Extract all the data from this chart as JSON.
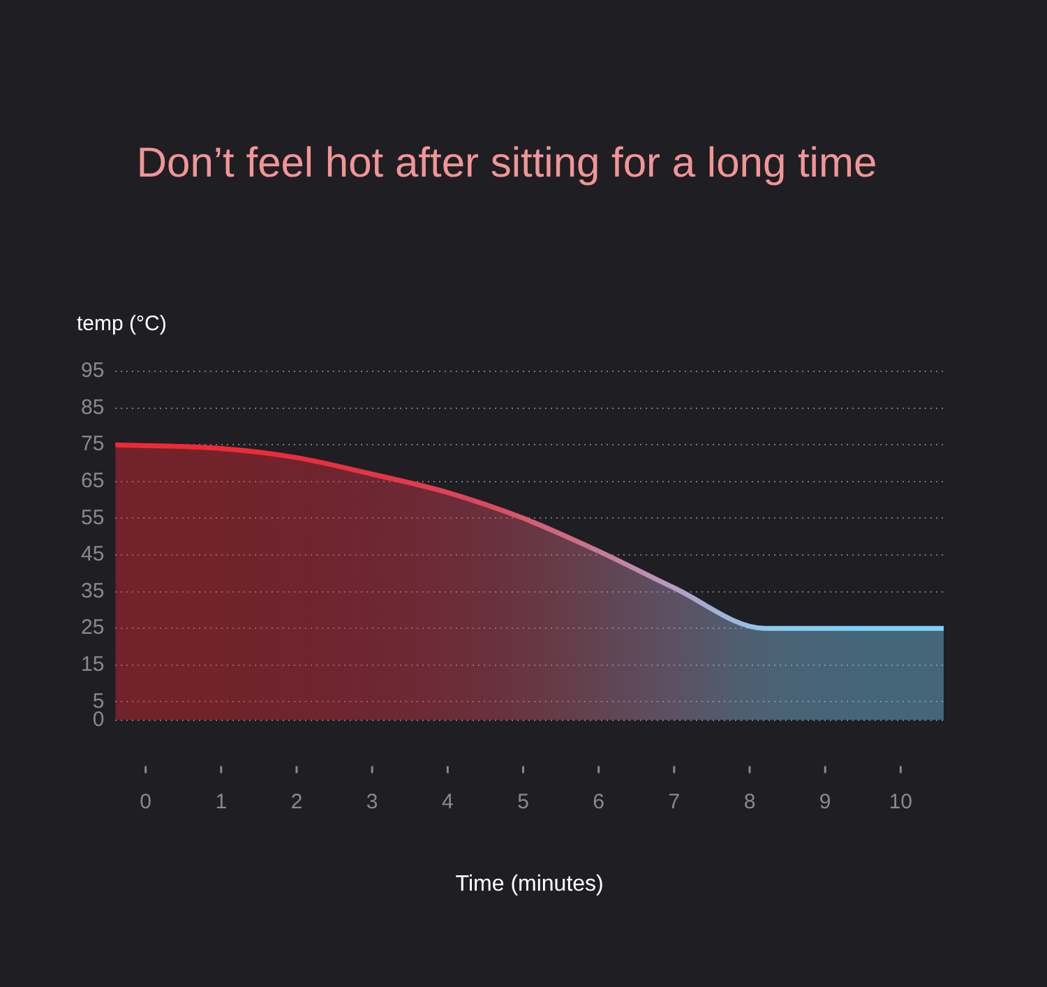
{
  "chart_data": {
    "type": "area",
    "title": "Don’t feel hot after sitting for a long time",
    "xlabel": "Time (minutes)",
    "ylabel": "temp (°C)",
    "x": [
      -0.4,
      1,
      2,
      3,
      4,
      5,
      6,
      7,
      8.2,
      10.57
    ],
    "series": [
      {
        "values": [
          75,
          74,
          71.5,
          67,
          62,
          55,
          46,
          36,
          25,
          25
        ],
        "colors": [
          "#ee2a35",
          "#ee2a35",
          "#e92d3c",
          "#e3364a",
          "#da4a60",
          "#cc6f86",
          "#b79ac0",
          "#8fc6ec",
          "#7ed0f7",
          "#7ed0f7"
        ]
      }
    ],
    "xlim": [
      -0.4,
      10.57
    ],
    "xticks": [
      0,
      1,
      2,
      3,
      4,
      5,
      6,
      7,
      8,
      9,
      10
    ],
    "ylim": [
      0,
      95
    ],
    "yticks": [
      0,
      5,
      15,
      25,
      35,
      45,
      55,
      65,
      75,
      85,
      95
    ],
    "grid": "y",
    "legend": false,
    "marker": "none",
    "line_style": "solid"
  }
}
